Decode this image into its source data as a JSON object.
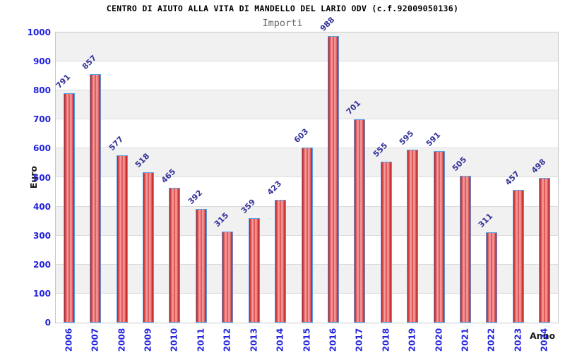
{
  "chart_data": {
    "type": "bar",
    "title": "CENTRO DI AIUTO ALLA VITA DI MANDELLO DEL LARIO ODV (c.f.92009050136)",
    "subtitle": "Importi",
    "xlabel": "Anno",
    "ylabel": "Euro",
    "categories": [
      "2006",
      "2007",
      "2008",
      "2009",
      "2010",
      "2011",
      "2012",
      "2013",
      "2014",
      "2015",
      "2016",
      "2017",
      "2018",
      "2019",
      "2020",
      "2021",
      "2022",
      "2023",
      "2024"
    ],
    "values": [
      791,
      857,
      577,
      518,
      465,
      392,
      315,
      359,
      423,
      603,
      988,
      701,
      555,
      595,
      591,
      505,
      311,
      457,
      498
    ],
    "ylim": [
      0,
      1000
    ],
    "ytick_step": 100,
    "legend": "none",
    "grid": "horizontal-bands-alternating",
    "colors": {
      "bar_fill_dark": "#bb1414",
      "bar_fill_light": "#f8aaaa",
      "bar_border": "#58a0e8",
      "axis_tick_label": "#2222dd",
      "value_label": "#333399",
      "band_gray": "#f1f1f1",
      "band_white": "#ffffff",
      "gridline": "#dcdcdc",
      "plot_border": "#c9c9c9",
      "title_color": "#000000",
      "subtitle_color": "#666666"
    }
  }
}
